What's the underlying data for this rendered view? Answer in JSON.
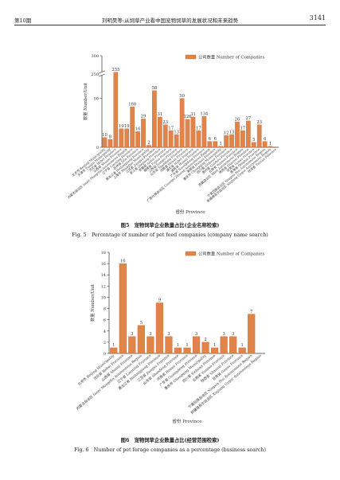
{
  "header": {
    "issue": "第10期",
    "title": "刘明昊等:从饲草产业看中国宠物饲草的发展状况和未来趋势",
    "page_number": "3141"
  },
  "colors": {
    "bar": "#e0844a",
    "bar_stroke": "#c96a32"
  },
  "figures": [
    {
      "label_cn": "图5　宠物饲草企业数量占比(企业名称检索)",
      "label_en": "Fig. 5　Percentage of number of pet feed companies (company name search)"
    },
    {
      "label_cn": "图6　宠物饲草企业数量占比(经营范围检索)",
      "label_en": "Fig. 6　Number of pet forage companies as a percentage (business search)"
    }
  ],
  "chart_data": [
    {
      "type": "bar",
      "legend": "公司数量 Number of Companies",
      "xlabel": "省份 Province",
      "ylabel": "数量 Number/Unit",
      "axis_break": [
        75,
        250
      ],
      "yticks": [
        "0",
        "50",
        "250",
        "300"
      ],
      "categories": [
        "北京市 Beijing Municipality",
        "天津市 Tianjin Municipality",
        "河北省 Hebei Province",
        "山西省 Shanxi Province",
        "内蒙古自治区 Inner Mongolia Autonomous Region",
        "辽宁省 Liaoning Province",
        "吉林省 Jilin Province",
        "黑龙江省 Heilongjiang Province",
        "上海市 Shanghai Municipality",
        "江苏省 Jiangsu Province",
        "浙江省 Zhejiang Province",
        "安徽省 Anhui Province",
        "福建省 Fujian Province",
        "江西省 Jiangxi Province",
        "山东省 Shandong Province",
        "河南省 Henan Province",
        "湖北省 Hubei Province",
        "湖南省 Hunan Province",
        "广东省 Guangdong Province",
        "广西壮族自治区 Guangxi Zhuang Autonomous Region",
        "海南省 Hainan Province",
        "重庆市 Chongqing Municipality",
        "四川省 Sichuan Province",
        "贵州省 Guizhou Province",
        "云南省 Yunnan Province",
        "西藏自治区 Tibet Autonomous Region",
        "陕西省 Shaanxi Province",
        "甘肃省 Gansu Province",
        "青海省 Qinghai Province",
        "宁夏回族自治区 Ningxia Hui Autonomous Region",
        "新疆维吾尔自治区 Xinjiang Uygur Autonomous Region",
        "台湾省 Taiwan Province"
      ],
      "values": [
        10,
        8,
        255,
        19,
        19,
        160,
        16,
        29,
        2,
        58,
        31,
        23,
        17,
        13,
        50,
        126,
        31,
        17,
        134,
        6,
        6,
        1,
        12,
        13,
        26,
        17,
        27,
        5,
        23,
        6,
        1,
        0
      ],
      "value_labels": [
        "10",
        "8",
        "255",
        "19",
        "19",
        "160",
        "16",
        "29",
        "2",
        "58",
        "31",
        "23",
        "17",
        "13",
        "50",
        "126",
        "31",
        "17",
        "134",
        "6",
        "6",
        "1",
        "12",
        "13",
        "26",
        "17",
        "27",
        "5",
        "23",
        "6",
        "1",
        ""
      ]
    },
    {
      "type": "bar",
      "legend": "公司数量 Number of Companies",
      "xlabel": "省份 Province",
      "ylabel": "数量 Number/Unit",
      "ylim": [
        0,
        18
      ],
      "yticks": [
        "0",
        "2",
        "4",
        "6",
        "8",
        "10",
        "12",
        "14",
        "16",
        "18"
      ],
      "categories": [
        "北京市 Beijing Municipality",
        "河北省 Hebei Province",
        "山西省 Shanxi Province",
        "内蒙古自治区 Inner Mongolia Autonomous Region",
        "辽宁省 Liaoning Province",
        "黑龙江省 Heilongjiang Province",
        "江苏省 Jiangsu Province",
        "山东省 Shandong Province",
        "河南省 Henan Province",
        "广东省 Guangdong Province",
        "重庆市 Chongqing Municipality",
        "四川省 Sichuan Province",
        "云南省 Yunnan Province",
        "陕西省 Shaanxi Province",
        "甘肃省 Gansu Province",
        "宁夏回族自治区 Ningxia Hui Autonomous Region",
        "新疆维吾尔自治区 Xinjiang Uygur Autonomous Region"
      ],
      "values": [
        1,
        16,
        3,
        5,
        3,
        9,
        3,
        1,
        1,
        3,
        2,
        1,
        3,
        3,
        1,
        7,
        0
      ],
      "value_labels": [
        "1",
        "16",
        "3",
        "5",
        "3",
        "9",
        "3",
        "1",
        "1",
        "3",
        "2",
        "1",
        "3",
        "3",
        "1",
        "7",
        ""
      ]
    }
  ]
}
